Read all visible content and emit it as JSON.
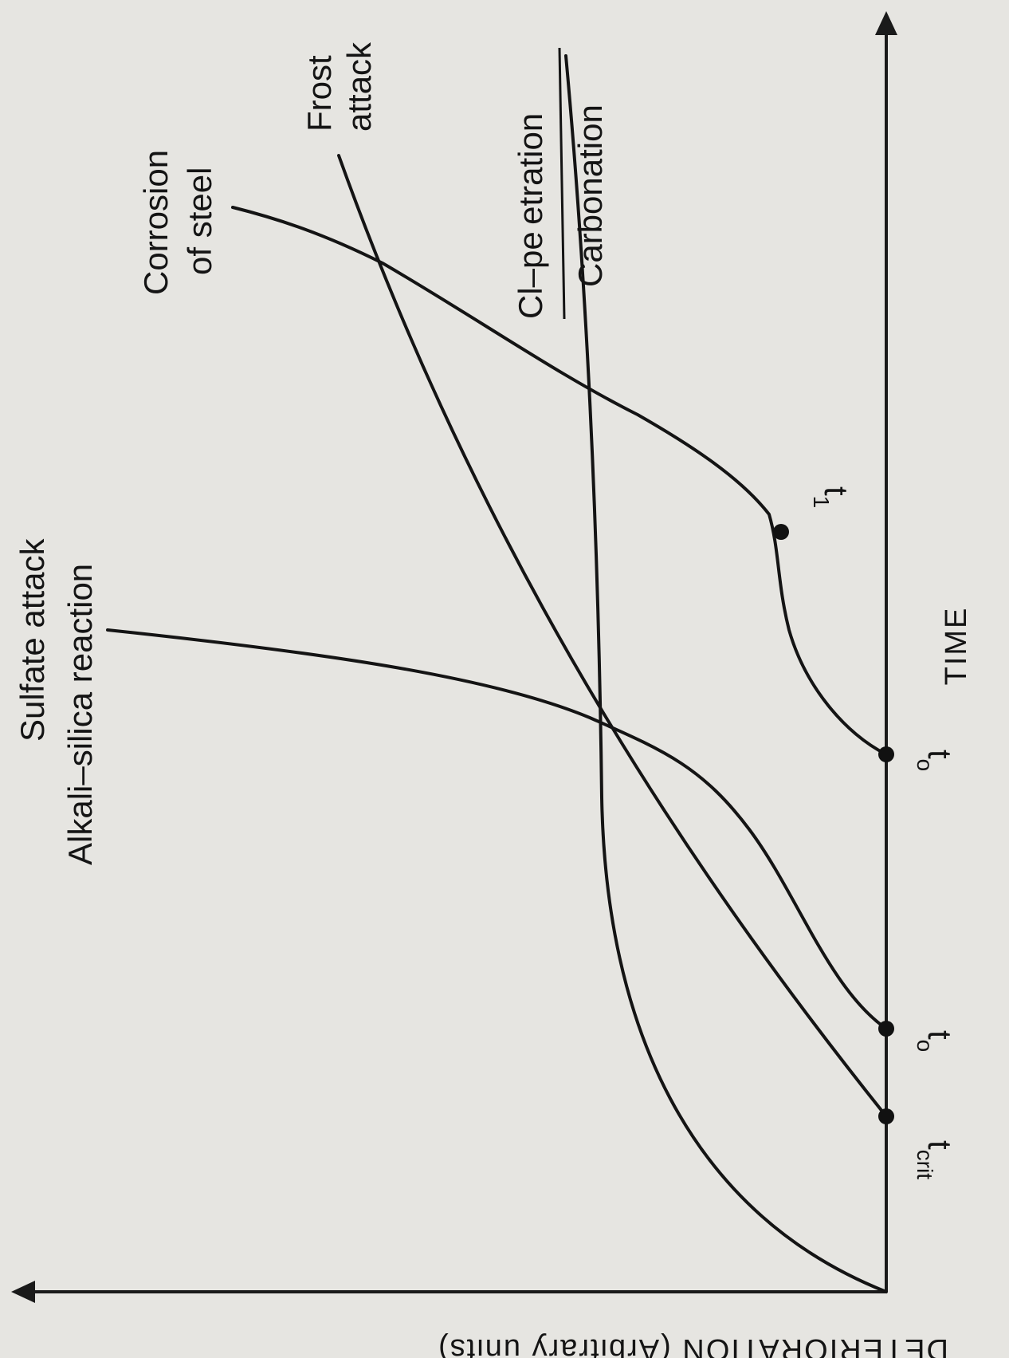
{
  "chart_data": {
    "type": "line",
    "title": "",
    "xlabel": "TIME",
    "ylabel": "DETERIORATION (Arbitrary units)",
    "x_ticks": [],
    "y_ticks": [],
    "grid": false,
    "series": [
      {
        "name": "Sulfate attack / Alkali–silica reaction",
        "label_lines": [
          "Sulfate attack",
          "Alkali–silica reaction"
        ]
      },
      {
        "name": "Corrosion of steel",
        "label_lines": [
          "Corrosion",
          "of steel"
        ]
      },
      {
        "name": "Frost attack",
        "label_lines": [
          "Frost",
          "attack"
        ]
      },
      {
        "name": "Cl–penetration / Carbonation",
        "label_lines": [
          "Cl–pe etration",
          "Carbonation"
        ]
      }
    ],
    "markers": [
      {
        "label": "t",
        "subscript": "crit"
      },
      {
        "label": "t",
        "subscript": "o"
      },
      {
        "label": "t",
        "subscript": "o"
      },
      {
        "label": "t",
        "subscript": "1"
      }
    ]
  }
}
